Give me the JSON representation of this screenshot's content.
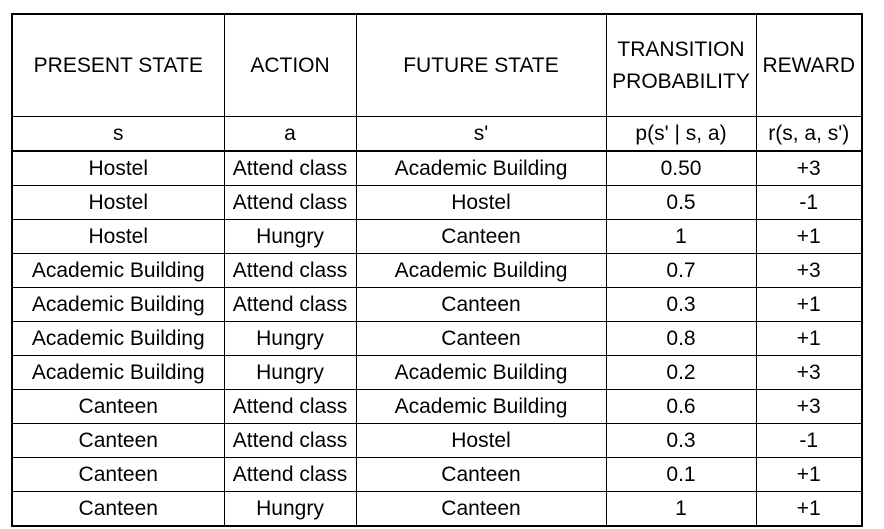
{
  "headers": {
    "present_state": "PRESENT STATE",
    "action": "ACTION",
    "future_state": "FUTURE STATE",
    "transition_probability_line1": "TRANSITION",
    "transition_probability_line2": "PROBABILITY",
    "reward": "REWARD"
  },
  "symbols": {
    "present_state": "s",
    "action": "a",
    "future_state": "s'",
    "transition_probability": "p(s' | s, a)",
    "reward": "r(s, a, s')"
  },
  "rows": [
    [
      "Hostel",
      "Attend class",
      "Academic Building",
      "0.50",
      "+3"
    ],
    [
      "Hostel",
      "Attend class",
      "Hostel",
      "0.5",
      "-1"
    ],
    [
      "Hostel",
      "Hungry",
      "Canteen",
      "1",
      "+1"
    ],
    [
      "Academic Building",
      "Attend class",
      "Academic Building",
      "0.7",
      "+3"
    ],
    [
      "Academic Building",
      "Attend class",
      "Canteen",
      "0.3",
      "+1"
    ],
    [
      "Academic Building",
      "Hungry",
      "Canteen",
      "0.8",
      "+1"
    ],
    [
      "Academic Building",
      "Hungry",
      "Academic Building",
      "0.2",
      "+3"
    ],
    [
      "Canteen",
      "Attend class",
      "Academic Building",
      "0.6",
      "+3"
    ],
    [
      "Canteen",
      "Attend class",
      "Hostel",
      "0.3",
      "-1"
    ],
    [
      "Canteen",
      "Attend class",
      "Canteen",
      "0.1",
      "+1"
    ],
    [
      "Canteen",
      "Hungry",
      "Canteen",
      "1",
      "+1"
    ]
  ]
}
